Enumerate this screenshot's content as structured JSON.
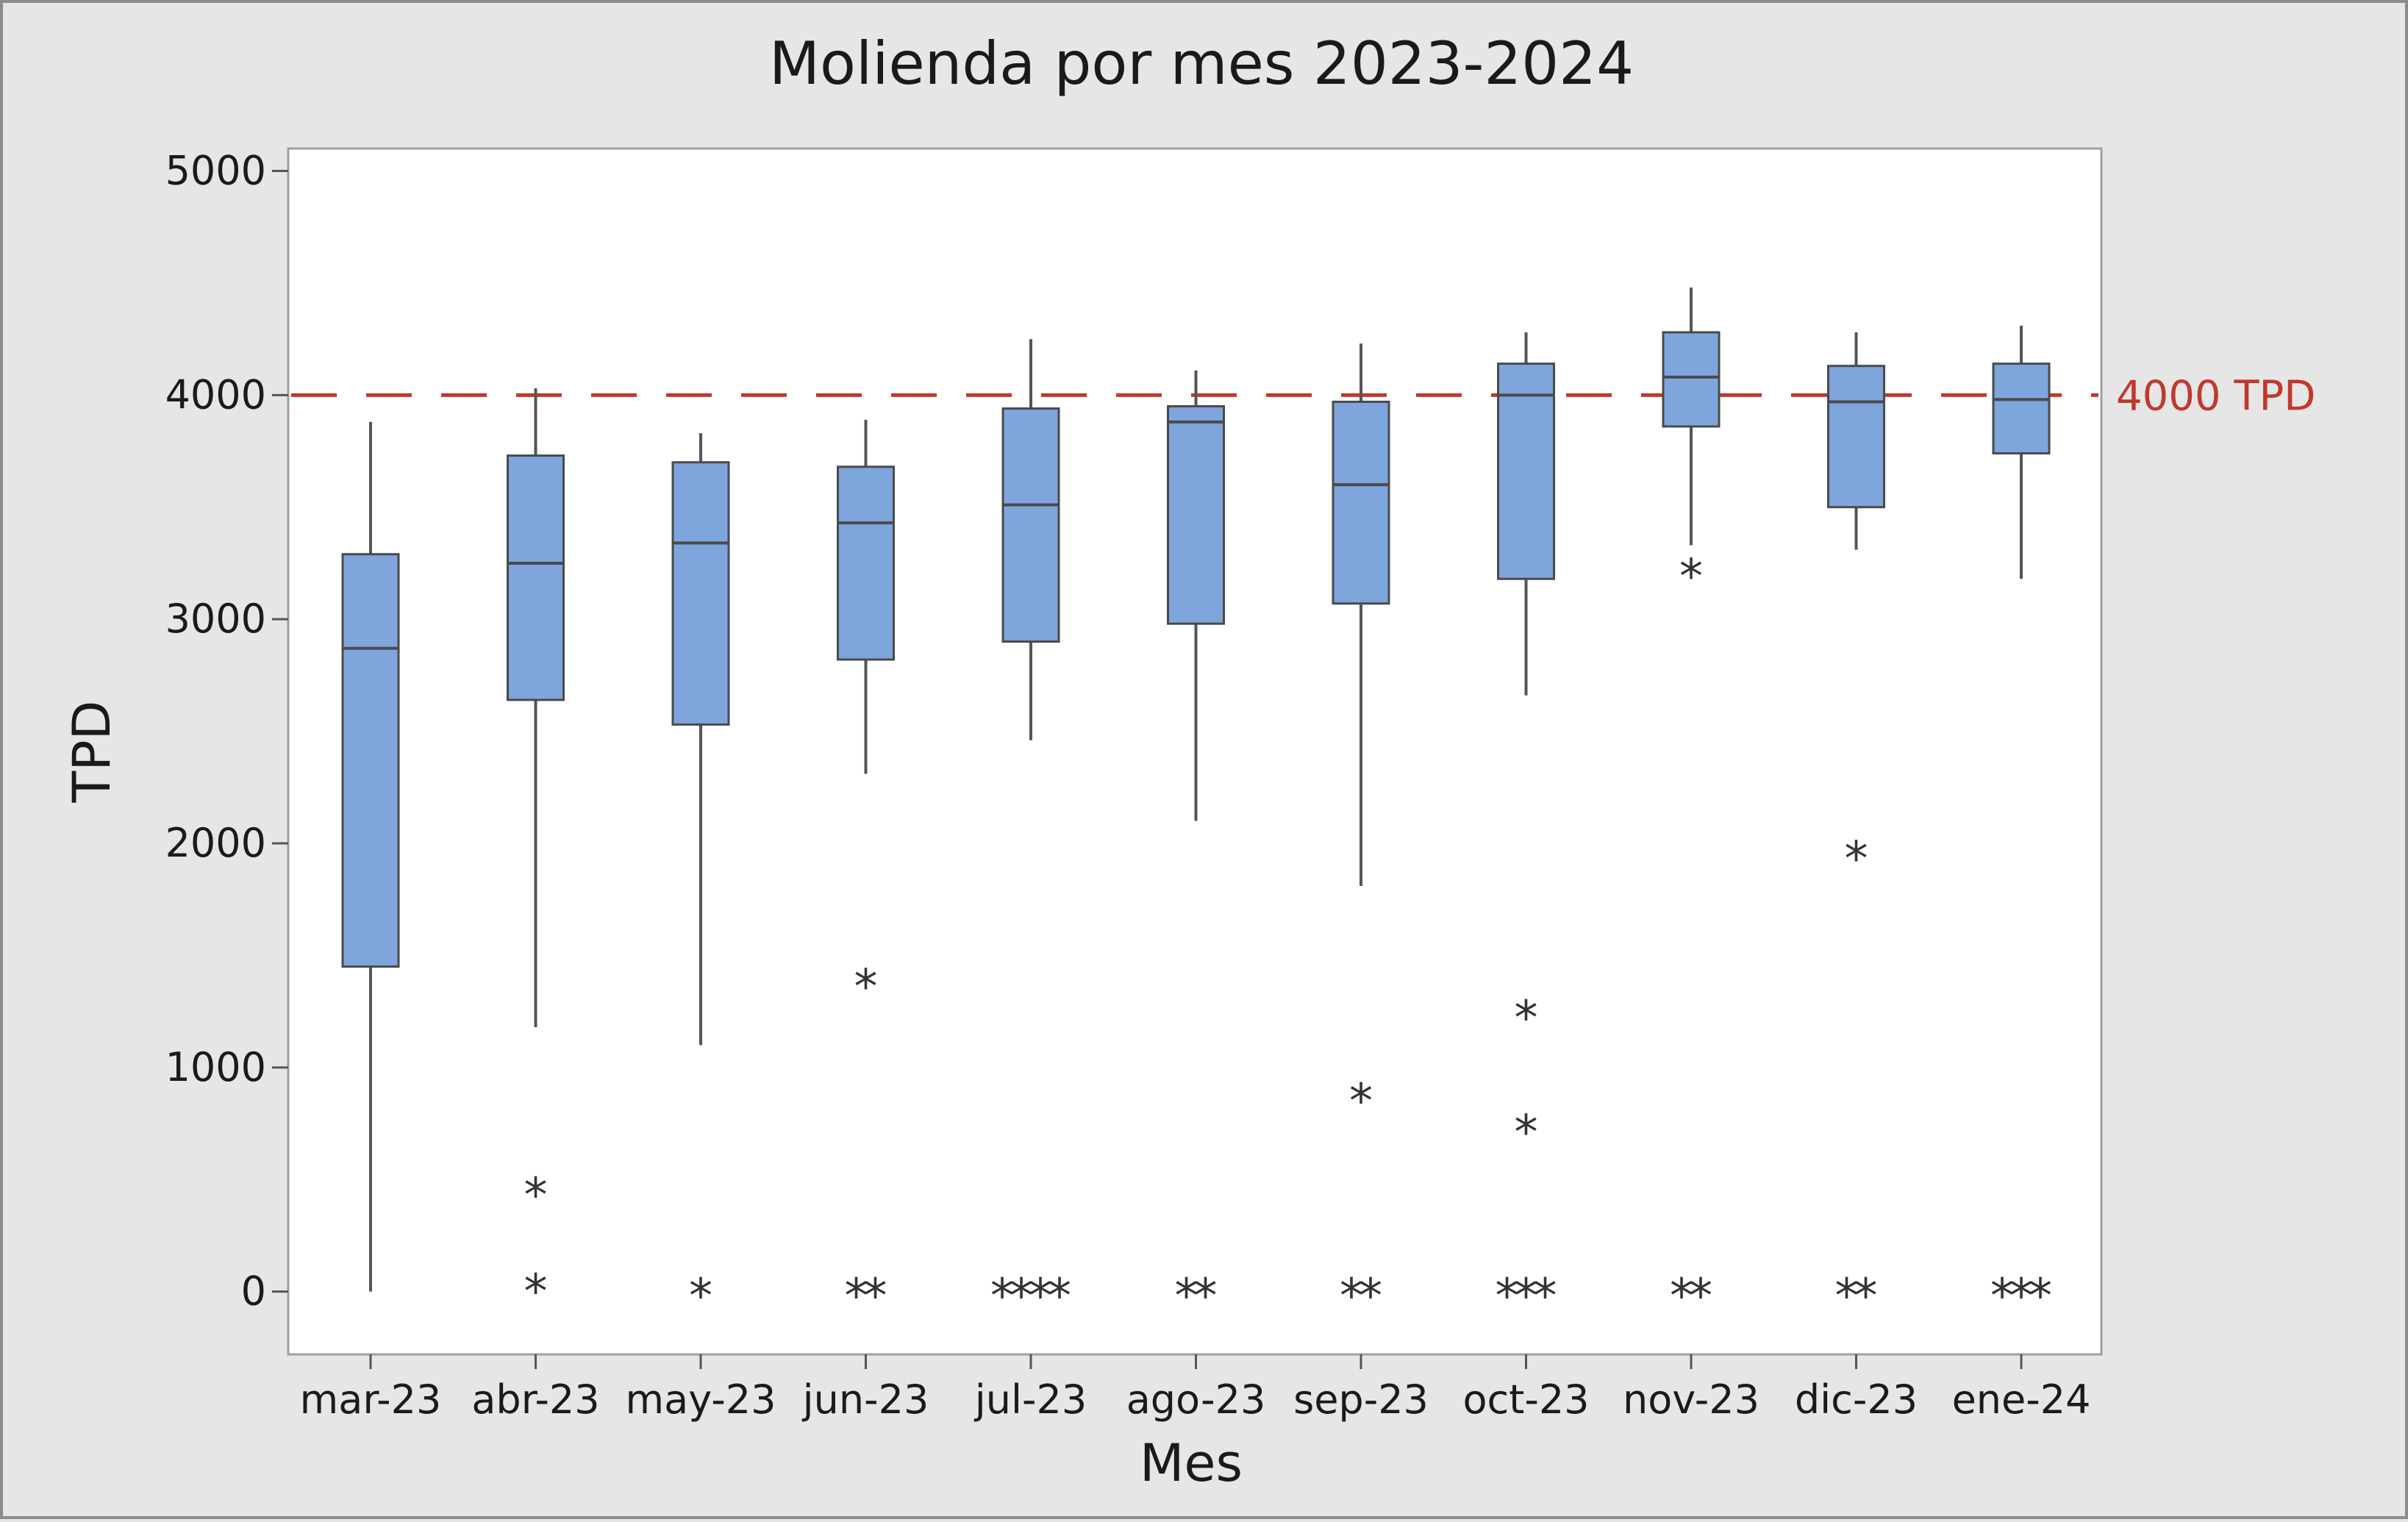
{
  "chart_data": {
    "type": "boxplot",
    "title": "Molienda por mes 2023-2024",
    "xlabel": "Mes",
    "ylabel": "TPD",
    "ylim": [
      -280,
      5100
    ],
    "yticks": [
      0,
      1000,
      2000,
      3000,
      4000,
      5000
    ],
    "grid": false,
    "colors": {
      "box_fill": "#7ea6dd",
      "box_stroke": "#4a4a4a",
      "whisker": "#555555",
      "reference": "#c0392b",
      "outlier": "#333333"
    },
    "reference_line": {
      "value": 4000,
      "label": "4000 TPD"
    },
    "categories": [
      "mar-23",
      "abr-23",
      "may-23",
      "jun-23",
      "jul-23",
      "ago-23",
      "sep-23",
      "oct-23",
      "nov-23",
      "dic-23",
      "ene-24"
    ],
    "boxes": [
      {
        "q1": 1450,
        "median": 2870,
        "q3": 3290,
        "whisker_low": 0,
        "whisker_high": 3880,
        "outliers": []
      },
      {
        "q1": 2640,
        "median": 3250,
        "q3": 3730,
        "whisker_low": 1180,
        "whisker_high": 4030,
        "outliers": [
          450,
          20
        ]
      },
      {
        "q1": 2530,
        "median": 3340,
        "q3": 3700,
        "whisker_low": 1100,
        "whisker_high": 3830,
        "outliers": [
          0
        ]
      },
      {
        "q1": 2820,
        "median": 3430,
        "q3": 3680,
        "whisker_low": 2310,
        "whisker_high": 3890,
        "outliers": [
          1380,
          0,
          0
        ]
      },
      {
        "q1": 2900,
        "median": 3510,
        "q3": 3940,
        "whisker_low": 2460,
        "whisker_high": 4250,
        "outliers": [
          0,
          0,
          0,
          0
        ]
      },
      {
        "q1": 2980,
        "median": 3880,
        "q3": 3950,
        "whisker_low": 2100,
        "whisker_high": 4110,
        "outliers": [
          0,
          0
        ]
      },
      {
        "q1": 3070,
        "median": 3600,
        "q3": 3970,
        "whisker_low": 1810,
        "whisker_high": 4230,
        "outliers": [
          870,
          0,
          0
        ]
      },
      {
        "q1": 3180,
        "median": 4000,
        "q3": 4140,
        "whisker_low": 2660,
        "whisker_high": 4280,
        "outliers": [
          1240,
          730,
          0,
          0,
          0
        ]
      },
      {
        "q1": 3860,
        "median": 4080,
        "q3": 4280,
        "whisker_low": 3330,
        "whisker_high": 4480,
        "outliers": [
          3210,
          0,
          0
        ]
      },
      {
        "q1": 3500,
        "median": 3970,
        "q3": 4130,
        "whisker_low": 3310,
        "whisker_high": 4280,
        "outliers": [
          1950,
          0,
          0
        ]
      },
      {
        "q1": 3740,
        "median": 3980,
        "q3": 4140,
        "whisker_low": 3180,
        "whisker_high": 4310,
        "outliers": [
          0,
          0,
          0
        ]
      }
    ]
  }
}
